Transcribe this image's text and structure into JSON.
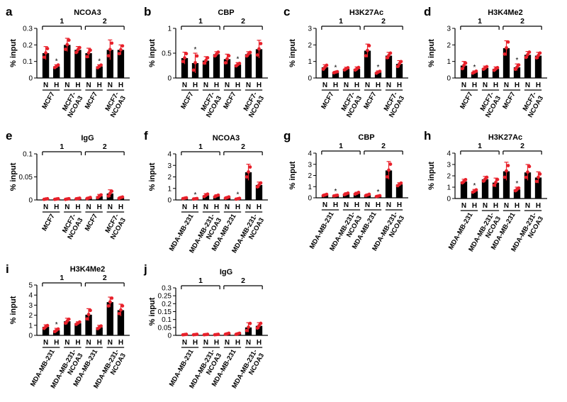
{
  "colors": {
    "bar": "#000000",
    "point": "#e8212b",
    "error": "#e8212b",
    "axis": "#000000"
  },
  "ylabel": "% input",
  "nh_labels": [
    "N",
    "H"
  ],
  "group_labels": [
    "1",
    "2"
  ],
  "chart_data": [
    {
      "panel": "a",
      "type": "bar",
      "title": "NCOA3",
      "ylabel": "% input",
      "ylim": [
        0,
        0.3
      ],
      "yticks": [
        "0",
        "0.1",
        "0.2",
        "0.3"
      ],
      "cell_lines": [
        "MCF7",
        "MCF7-\nNCOA3",
        "MCF7",
        "MCF7-\nNCOA3"
      ],
      "values": [
        0.15,
        0.07,
        0.2,
        0.17,
        0.15,
        0.07,
        0.17,
        0.17
      ],
      "errors": [
        0.04,
        0.01,
        0.04,
        0.02,
        0.03,
        0.01,
        0.06,
        0.03
      ],
      "stars": [
        false,
        true,
        false,
        false,
        false,
        true,
        false,
        false
      ]
    },
    {
      "panel": "b",
      "type": "bar",
      "title": "CBP",
      "ylabel": "% input",
      "ylim": [
        0,
        1
      ],
      "yticks": [
        "0",
        "0.5",
        "1"
      ],
      "cell_lines": [
        "MCF7",
        "MCF7-\nNCOA3",
        "MCF7",
        "MCF7-\nNCOA3"
      ],
      "values": [
        0.4,
        0.3,
        0.35,
        0.48,
        0.38,
        0.27,
        0.48,
        0.58
      ],
      "errors": [
        0.12,
        0.2,
        0.08,
        0.05,
        0.1,
        0.04,
        0.05,
        0.18
      ],
      "stars": [
        false,
        true,
        false,
        false,
        false,
        true,
        false,
        false
      ]
    },
    {
      "panel": "c",
      "type": "bar",
      "title": "H3K27Ac",
      "ylabel": "% input",
      "ylim": [
        0,
        3
      ],
      "yticks": [
        "0",
        "1",
        "2",
        "3"
      ],
      "cell_lines": [
        "MCF7",
        "MCF7-\nNCOA3",
        "MCF7",
        "MCF7-\nNCOA3"
      ],
      "values": [
        0.65,
        0.35,
        0.55,
        0.55,
        1.65,
        0.35,
        1.35,
        0.85
      ],
      "errors": [
        0.15,
        0.05,
        0.1,
        0.12,
        0.4,
        0.08,
        0.2,
        0.2
      ],
      "stars": [
        false,
        true,
        false,
        false,
        false,
        true,
        false,
        false
      ]
    },
    {
      "panel": "d",
      "type": "bar",
      "title": "H3K4Me2",
      "ylabel": "% input",
      "ylim": [
        0,
        3
      ],
      "yticks": [
        "0",
        "1",
        "2",
        "3"
      ],
      "cell_lines": [
        "MCF7",
        "MCF7-\nNCOA3",
        "MCF7",
        "MCF7-\nNCOA3"
      ],
      "values": [
        0.75,
        0.35,
        0.6,
        0.55,
        1.8,
        0.65,
        1.4,
        1.35
      ],
      "errors": [
        0.25,
        0.08,
        0.12,
        0.12,
        0.45,
        0.2,
        0.2,
        0.2
      ],
      "stars": [
        false,
        true,
        false,
        false,
        false,
        true,
        false,
        false
      ]
    },
    {
      "panel": "e",
      "type": "bar",
      "title": "IgG",
      "ylabel": "% input",
      "ylim": [
        0,
        0.1
      ],
      "yticks": [
        "0",
        "0.05",
        "0.1"
      ],
      "cell_lines": [
        "MCF7",
        "MCF7-\nNCOA3",
        "MCF7",
        "MCF7-\nNCOA3"
      ],
      "values": [
        0.002,
        0.002,
        0.002,
        0.003,
        0.004,
        0.008,
        0.014,
        0.005
      ],
      "errors": [
        0.001,
        0.001,
        0.001,
        0.001,
        0.002,
        0.004,
        0.008,
        0.002
      ],
      "stars": [
        false,
        false,
        false,
        false,
        false,
        false,
        false,
        false
      ]
    },
    {
      "panel": "f",
      "type": "bar",
      "title": "NCOA3",
      "ylabel": "% input",
      "ylim": [
        0,
        4
      ],
      "yticks": [
        "0",
        "1",
        "2",
        "3",
        "4"
      ],
      "cell_lines": [
        "MDA-MB-231",
        "MDA-MB-231-\nNCOA3",
        "MDA-MB-231",
        "MDA-MB-231-\nNCOA3"
      ],
      "values": [
        0.15,
        0.1,
        0.4,
        0.35,
        0.2,
        0.1,
        2.4,
        1.3
      ],
      "errors": [
        0.05,
        0.03,
        0.15,
        0.1,
        0.08,
        0.05,
        0.7,
        0.25
      ],
      "stars": [
        false,
        true,
        false,
        false,
        false,
        true,
        false,
        false
      ]
    },
    {
      "panel": "g",
      "type": "bar",
      "title": "CBP",
      "ylabel": "% input",
      "ylim": [
        0,
        4
      ],
      "yticks": [
        "0",
        "1",
        "2",
        "3",
        "4"
      ],
      "cell_lines": [
        "MDA-MB-231",
        "MDA-MB-231-\nNCOA3",
        "MDA-MB-231",
        "MDA-MB-231-\nNCOA3"
      ],
      "values": [
        0.25,
        0.2,
        0.35,
        0.4,
        0.25,
        0.15,
        2.45,
        1.2
      ],
      "errors": [
        0.08,
        0.05,
        0.1,
        0.1,
        0.08,
        0.05,
        0.8,
        0.15
      ],
      "stars": [
        false,
        true,
        false,
        false,
        false,
        true,
        false,
        false
      ]
    },
    {
      "panel": "h",
      "type": "bar",
      "title": "H3K27Ac",
      "ylabel": "% input",
      "ylim": [
        0,
        4
      ],
      "yticks": [
        "0",
        "1",
        "2",
        "3",
        "4"
      ],
      "cell_lines": [
        "MDA-MB-231",
        "MDA-MB-231-\nNCOA3",
        "MDA-MB-231",
        "MDA-MB-231-\nNCOA3"
      ],
      "values": [
        1.5,
        0.65,
        1.7,
        1.4,
        2.4,
        0.8,
        2.3,
        1.85
      ],
      "errors": [
        0.2,
        0.15,
        0.25,
        0.4,
        0.8,
        0.2,
        0.7,
        0.5
      ],
      "stars": [
        false,
        true,
        false,
        false,
        false,
        true,
        false,
        false
      ]
    },
    {
      "panel": "i",
      "type": "bar",
      "title": "H3K4Me2",
      "ylabel": "% input",
      "ylim": [
        0,
        5
      ],
      "yticks": [
        "0",
        "1",
        "2",
        "3",
        "4",
        "5"
      ],
      "cell_lines": [
        "MDA-MB-231",
        "MDA-MB-231-\nNCOA3",
        "MDA-MB-231",
        "MDA-MB-231-\nNCOA3"
      ],
      "values": [
        0.85,
        0.5,
        1.4,
        1.2,
        2.05,
        0.8,
        3.3,
        2.5
      ],
      "errors": [
        0.2,
        0.2,
        0.3,
        0.15,
        0.6,
        0.2,
        0.5,
        0.6
      ],
      "stars": [
        false,
        true,
        false,
        false,
        false,
        false,
        false,
        false
      ]
    },
    {
      "panel": "j",
      "type": "bar",
      "title": "IgG",
      "ylabel": "% input",
      "ylim": [
        0,
        0.3
      ],
      "yticks": [
        "0",
        "0.05",
        "0.1",
        "0.15",
        "0.2",
        "0.25",
        "0.3"
      ],
      "cell_lines": [
        "MDA-MB-231",
        "MDA-MB-231-\nNCOA3",
        "MDA-MB-231",
        "MDA-MB-231-\nNCOA3"
      ],
      "values": [
        0.005,
        0.005,
        0.005,
        0.005,
        0.01,
        0.01,
        0.05,
        0.06
      ],
      "errors": [
        0.002,
        0.002,
        0.002,
        0.002,
        0.004,
        0.005,
        0.03,
        0.02
      ],
      "stars": [
        false,
        false,
        false,
        false,
        false,
        false,
        false,
        false
      ]
    }
  ]
}
